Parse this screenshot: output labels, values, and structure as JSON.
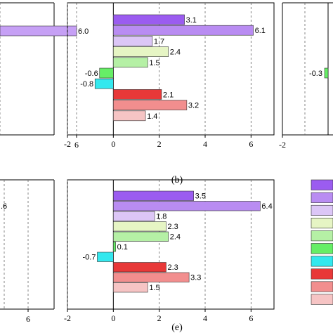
{
  "figure": {
    "captions": [
      "(b)",
      "(e)"
    ]
  },
  "chart_data": [
    {
      "panel": "a-partial",
      "type": "bar",
      "orientation": "horizontal",
      "values": [
        6.0
      ],
      "value_labels": [
        "6.0"
      ],
      "colors": [
        "#c6a0f5"
      ],
      "xlim": [
        -2,
        7
      ],
      "xticks": [
        "6"
      ],
      "grid": "vertical-dashed"
    },
    {
      "panel": "b",
      "type": "bar",
      "orientation": "horizontal",
      "values": [
        3.1,
        6.1,
        1.7,
        2.4,
        1.5,
        -0.6,
        -0.8,
        2.1,
        3.2,
        1.4
      ],
      "value_labels": [
        "3.1",
        "6.1",
        "1.7",
        "2.4",
        "1.5",
        "-0.6",
        "-0.8",
        "2.1",
        "3.2",
        "1.4"
      ],
      "colors": [
        "#9b5cf0",
        "#b98cf2",
        "#dcc6f6",
        "#e6f5c4",
        "#b5f0a5",
        "#66ee66",
        "#33e8ee",
        "#e83838",
        "#f28e8e",
        "#f6c4c4"
      ],
      "xlim": [
        -2,
        7
      ],
      "xticks": [
        "-2",
        "0",
        "2",
        "4",
        "6"
      ],
      "grid": "vertical-dashed",
      "caption": "(b)"
    },
    {
      "panel": "c-partial",
      "type": "bar",
      "orientation": "horizontal",
      "values": [
        -0.3
      ],
      "value_labels": [
        "-0.3"
      ],
      "colors": [
        "#66ee66"
      ],
      "xticks": [
        "-2"
      ],
      "grid": "vertical-dashed"
    },
    {
      "panel": "d-partial",
      "type": "bar",
      "orientation": "horizontal",
      "value_labels": [
        ".6"
      ],
      "xticks": [
        "6"
      ],
      "grid": "vertical-dashed"
    },
    {
      "panel": "e",
      "type": "bar",
      "orientation": "horizontal",
      "values": [
        3.5,
        6.4,
        1.8,
        2.3,
        2.4,
        0.1,
        -0.7,
        2.3,
        3.3,
        1.5
      ],
      "value_labels": [
        "3.5",
        "6.4",
        "1.8",
        "2.3",
        "2.4",
        "0.1",
        "-0.7",
        "2.3",
        "3.3",
        "1.5"
      ],
      "colors": [
        "#9b5cf0",
        "#b98cf2",
        "#dcc6f6",
        "#e6f5c4",
        "#b5f0a5",
        "#66ee66",
        "#33e8ee",
        "#e83838",
        "#f28e8e",
        "#f6c4c4"
      ],
      "xlim": [
        -2,
        7
      ],
      "xticks": [
        "-2",
        "0",
        "2",
        "4",
        "6"
      ],
      "grid": "vertical-dashed",
      "caption": "(e)"
    },
    {
      "panel": "legend",
      "type": "legend",
      "swatch_colors": [
        "#9b5cf0",
        "#b98cf2",
        "#dcc6f6",
        "#e6f5c4",
        "#b5f0a5",
        "#66ee66",
        "#33e8ee",
        "#e83838",
        "#f28e8e",
        "#f6c4c4"
      ]
    }
  ]
}
